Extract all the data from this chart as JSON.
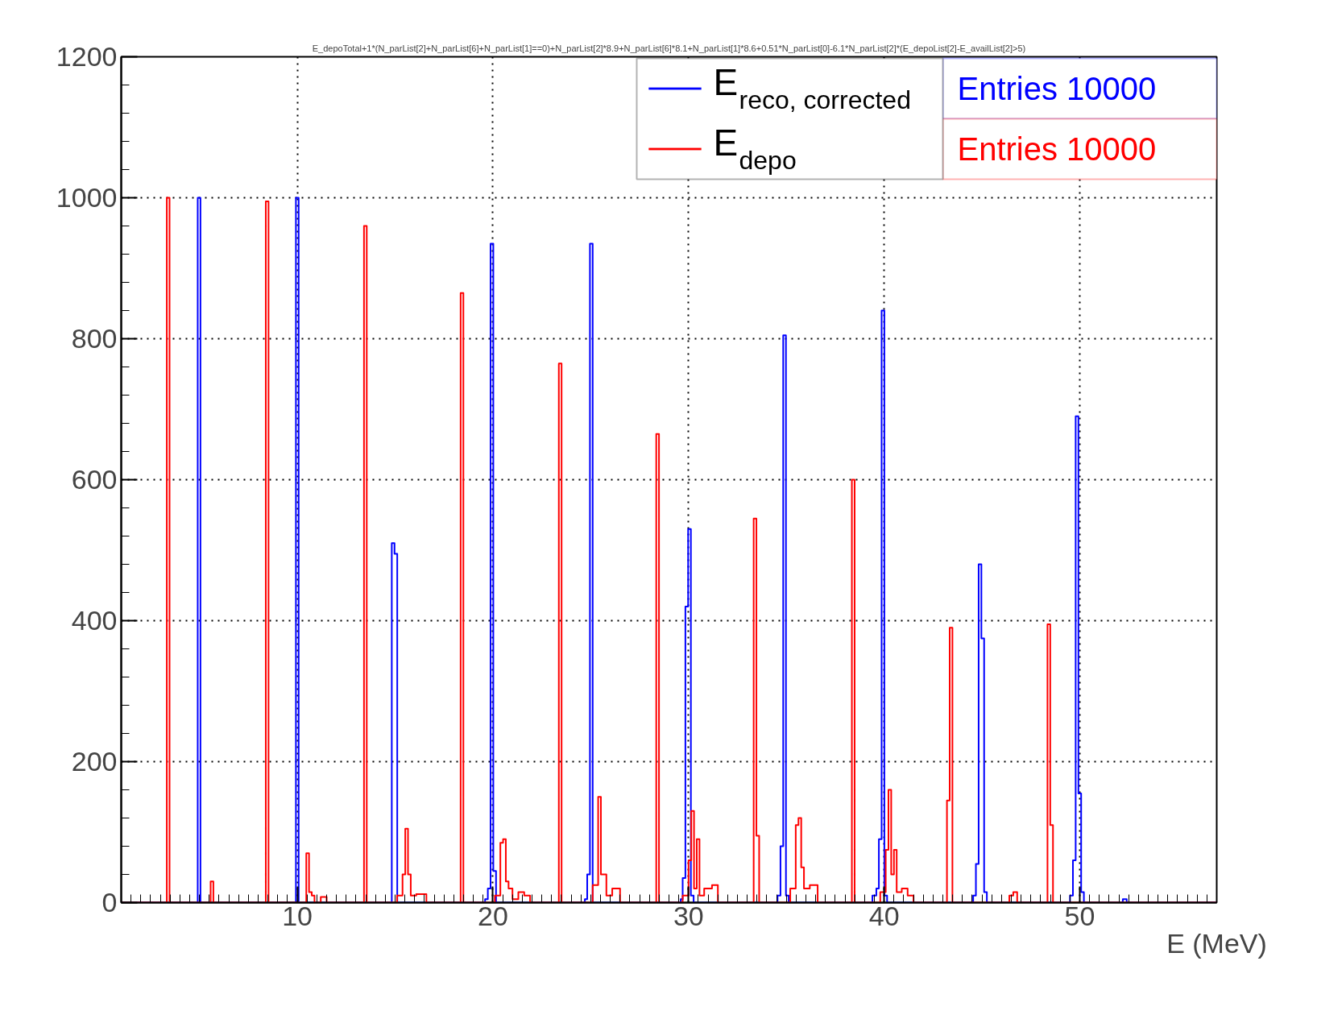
{
  "chart_data": {
    "type": "step",
    "title": "E_depoTotal+1*(N_parList[2]+N_parList[6]+N_parList[1]==0)+N_parList[2]*8.9+N_parList[6]*8.1+N_parList[1]*8.6+0.51*N_parList[0]-6.1*N_parList[2]*(E_depoList[2]-E_availList[2]>5)",
    "xlabel": "E (MeV)",
    "xlim": [
      1,
      57
    ],
    "xticks": [
      10,
      20,
      30,
      40,
      50
    ],
    "ylim": [
      0,
      1200
    ],
    "yticks": [
      0,
      200,
      400,
      600,
      800,
      1000,
      1200
    ],
    "grid": true,
    "legend": "top right",
    "annotations": [
      "Entries    10000",
      "Entries    10000"
    ],
    "series": [
      {
        "name": "E$_{reco, corrected}$",
        "color": "#0000ff",
        "x": [
          1,
          4.91,
          5.05,
          9.93,
          10.07,
          14.83,
          14.97,
          15.11,
          19.6,
          19.74,
          19.88,
          20.02,
          20.16,
          24.7,
          24.82,
          24.96,
          25.1,
          29.6,
          29.7,
          29.84,
          29.98,
          30.12,
          30.26,
          34.55,
          34.7,
          34.84,
          34.98,
          35.12,
          39.4,
          39.6,
          39.73,
          39.87,
          40.01,
          40.15,
          44.55,
          44.69,
          44.83,
          44.97,
          45.11,
          45.25,
          49.5,
          49.65,
          49.79,
          49.93,
          50.07,
          50.21,
          52.2,
          52.4,
          57
        ],
        "values": [
          0,
          1000,
          0,
          1000,
          0,
          510,
          495,
          0,
          5,
          20,
          935,
          45,
          0,
          5,
          40,
          935,
          0,
          5,
          35,
          420,
          530,
          10,
          0,
          10,
          80,
          805,
          10,
          0,
          10,
          20,
          90,
          840,
          10,
          0,
          10,
          55,
          480,
          375,
          15,
          0,
          10,
          60,
          690,
          155,
          15,
          0,
          5,
          0,
          0
        ]
      },
      {
        "name": "E$_{depo}$",
        "color": "#ff0000",
        "x": [
          1,
          3.33,
          3.47,
          5.57,
          5.71,
          8.39,
          8.53,
          10.46,
          10.6,
          10.74,
          10.88,
          11.2,
          11.5,
          13.41,
          13.55,
          15.1,
          15.38,
          15.52,
          15.66,
          15.8,
          16.08,
          16.6,
          18.35,
          18.49,
          20.1,
          20.38,
          20.52,
          20.66,
          20.8,
          21,
          21.3,
          21.6,
          21.9,
          23.37,
          23.51,
          25.1,
          25.38,
          25.52,
          25.8,
          26.1,
          26.5,
          28.35,
          28.49,
          29.7,
          30,
          30.14,
          30.28,
          30.42,
          30.56,
          30.8,
          31.2,
          31.5,
          33.33,
          33.47,
          33.61,
          35.2,
          35.48,
          35.62,
          35.76,
          35.9,
          36.2,
          36.6,
          38.35,
          38.49,
          39.8,
          40.08,
          40.22,
          40.36,
          40.5,
          40.64,
          40.9,
          41.2,
          41.5,
          43.21,
          43.35,
          43.49,
          46.4,
          46.6,
          46.8,
          48.35,
          48.49,
          48.63,
          57
        ],
        "values": [
          0,
          1000,
          0,
          30,
          0,
          995,
          0,
          70,
          15,
          10,
          0,
          8,
          0,
          960,
          0,
          10,
          40,
          105,
          40,
          10,
          12,
          0,
          865,
          0,
          10,
          85,
          90,
          30,
          20,
          5,
          15,
          10,
          0,
          765,
          0,
          25,
          150,
          40,
          10,
          20,
          0,
          665,
          0,
          10,
          60,
          130,
          20,
          90,
          10,
          20,
          25,
          0,
          545,
          95,
          0,
          20,
          110,
          120,
          50,
          20,
          25,
          0,
          600,
          0,
          15,
          75,
          160,
          40,
          75,
          15,
          20,
          10,
          0,
          145,
          390,
          0,
          10,
          15,
          0,
          395,
          110,
          0,
          0
        ]
      }
    ]
  }
}
